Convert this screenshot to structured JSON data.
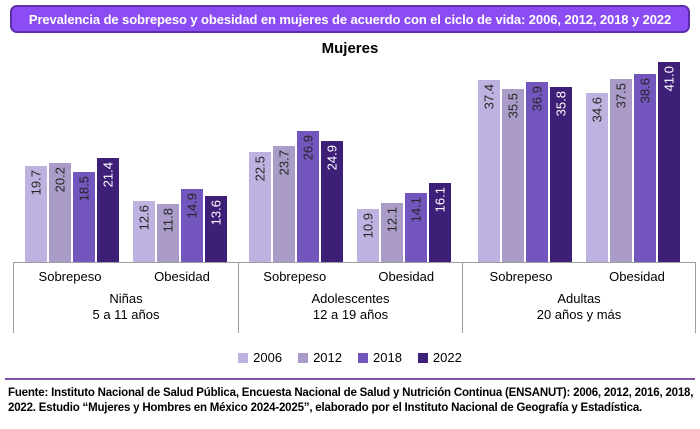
{
  "header": {
    "title": "Prevalencia de sobrepeso y obesidad en mujeres de acuerdo con el ciclo de vida: 2006, 2012, 2018 y 2022",
    "subtitle": "Mujeres"
  },
  "chart_data": {
    "type": "bar",
    "title": "Mujeres",
    "value_unit": "percent",
    "ylim": [
      0,
      41
    ],
    "legend_position": "bottom",
    "series": [
      {
        "name": "2006",
        "color": "#BEB3E0",
        "value_label_color": "#262626"
      },
      {
        "name": "2012",
        "color": "#AB9BC8",
        "value_label_color": "#262626"
      },
      {
        "name": "2018",
        "color": "#7355BE",
        "value_label_color": "#262626"
      },
      {
        "name": "2022",
        "color": "#3E1F78",
        "value_label_color": "#FFFFFF"
      }
    ],
    "groups": [
      {
        "label_lines": [
          "Niñas",
          "5 a 11 años"
        ],
        "subgroups": [
          {
            "category": "Sobrepeso",
            "values": [
              19.7,
              20.2,
              18.5,
              21.4
            ]
          },
          {
            "category": "Obesidad",
            "values": [
              12.6,
              11.8,
              14.9,
              13.6
            ]
          }
        ]
      },
      {
        "label_lines": [
          "Adolescentes",
          "12 a 19 años"
        ],
        "subgroups": [
          {
            "category": "Sobrepeso",
            "values": [
              22.5,
              23.7,
              26.9,
              24.9
            ]
          },
          {
            "category": "Obesidad",
            "values": [
              10.9,
              12.1,
              14.1,
              16.1
            ]
          }
        ]
      },
      {
        "label_lines": [
          "Adultas",
          "20 años y más"
        ],
        "subgroups": [
          {
            "category": "Sobrepeso",
            "values": [
              37.4,
              35.5,
              36.9,
              35.8
            ]
          },
          {
            "category": "Obesidad",
            "values": [
              34.6,
              37.5,
              38.6,
              41.0
            ]
          }
        ]
      }
    ]
  },
  "footer": {
    "line1": "Fuente: Instituto Nacional de Salud Pública, Encuesta Nacional de Salud y Nutrición Continua (ENSANUT): 2006, 2012, 2016, 2018,",
    "line2": "2022. Estudio “Mujeres y Hombres en México 2024-2025”, elaborado por el Instituto Nacional de Geografía y Estadística."
  },
  "colors": {
    "title_bg": "#8B4DF3",
    "title_border": "#5D2EA8",
    "separator": "#7B52A8",
    "axis": "#9E9E9E"
  }
}
